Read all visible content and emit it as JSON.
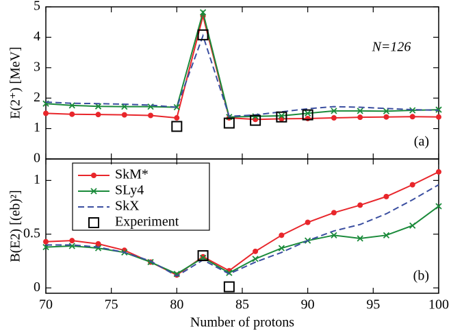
{
  "chart_data": [
    {
      "type": "line",
      "ylabel": "E(2⁺) [MeV]",
      "annotations": [
        "N=126",
        "(a)"
      ],
      "x": [
        70,
        72,
        74,
        76,
        78,
        80,
        82,
        84,
        86,
        88,
        90,
        92,
        94,
        96,
        98,
        100
      ],
      "xlim": [
        70,
        100
      ],
      "ylim": [
        0,
        5
      ],
      "yticks": [
        0,
        1,
        2,
        3,
        4,
        5
      ],
      "legend": "upper left",
      "series": [
        {
          "name": "SkM*",
          "color": "#e8262b",
          "marker": "circle",
          "line": "solid",
          "values": [
            1.5,
            1.47,
            1.46,
            1.45,
            1.43,
            1.35,
            4.7,
            1.35,
            1.3,
            1.32,
            1.33,
            1.35,
            1.37,
            1.38,
            1.39,
            1.38
          ]
        },
        {
          "name": "SLy4",
          "color": "#1a8a3a",
          "marker": "x",
          "line": "solid",
          "values": [
            1.82,
            1.76,
            1.73,
            1.72,
            1.72,
            1.7,
            4.82,
            1.38,
            1.4,
            1.42,
            1.5,
            1.58,
            1.58,
            1.57,
            1.6,
            1.62
          ]
        },
        {
          "name": "SkX",
          "color": "#3a4ea0",
          "marker": "none",
          "line": "dashed",
          "values": [
            1.87,
            1.83,
            1.82,
            1.8,
            1.77,
            1.7,
            4.05,
            1.4,
            1.45,
            1.55,
            1.65,
            1.72,
            1.7,
            1.66,
            1.62,
            1.6
          ]
        },
        {
          "name": "Experiment",
          "color": "#000000",
          "marker": "square",
          "line": "none",
          "values": [
            null,
            null,
            null,
            null,
            null,
            1.07,
            4.08,
            1.18,
            1.27,
            1.38,
            1.45,
            null,
            null,
            null,
            null,
            null
          ]
        }
      ]
    },
    {
      "type": "line",
      "xlabel": "Number of protons",
      "ylabel": "B(E2) [(eb)²]",
      "annotations": [
        "(b)"
      ],
      "x": [
        70,
        72,
        74,
        76,
        78,
        80,
        82,
        84,
        86,
        88,
        90,
        92,
        94,
        96,
        98,
        100
      ],
      "xlim": [
        70,
        100
      ],
      "xticks": [
        70,
        75,
        80,
        85,
        90,
        95,
        100
      ],
      "ylim": [
        -0.05,
        1.2
      ],
      "yticks": [
        0,
        0.5,
        1
      ],
      "series": [
        {
          "color": "#e8262b",
          "marker": "circle",
          "line": "solid",
          "values": [
            0.43,
            0.44,
            0.41,
            0.35,
            0.24,
            0.12,
            0.29,
            0.16,
            0.34,
            0.49,
            0.61,
            0.7,
            0.77,
            0.85,
            0.96,
            1.08
          ]
        },
        {
          "color": "#1a8a3a",
          "marker": "x",
          "line": "solid",
          "values": [
            0.38,
            0.39,
            0.37,
            0.33,
            0.24,
            0.13,
            0.28,
            0.14,
            0.27,
            0.37,
            0.44,
            0.49,
            0.46,
            0.49,
            0.58,
            0.76
          ]
        },
        {
          "color": "#3a4ea0",
          "marker": "none",
          "line": "dashed",
          "values": [
            0.4,
            0.4,
            0.38,
            0.33,
            0.25,
            0.11,
            0.26,
            0.13,
            0.24,
            0.33,
            0.44,
            0.53,
            0.59,
            0.69,
            0.82,
            0.96
          ]
        },
        {
          "color": "#000000",
          "marker": "square",
          "line": "none",
          "values": [
            null,
            null,
            null,
            null,
            null,
            null,
            0.3,
            0.01,
            null,
            null,
            null,
            null,
            null,
            null,
            null,
            null
          ]
        }
      ]
    }
  ]
}
